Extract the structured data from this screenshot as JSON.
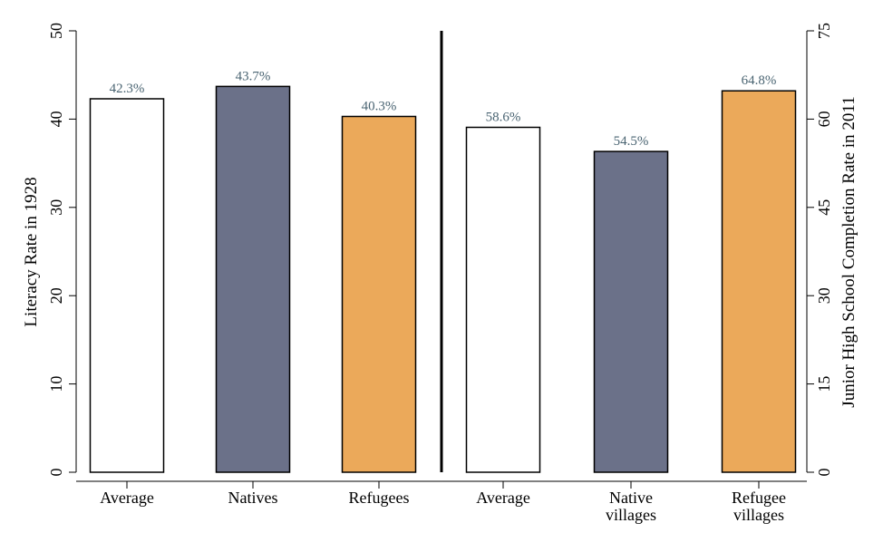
{
  "chart_data": {
    "type": "bar",
    "ylabel_left": "Literacy Rate in 1928",
    "ylabel_right": "Junior High School Completion Rate in 2011",
    "left_axis": {
      "ylim": [
        0,
        50
      ],
      "ticks": [
        "0",
        "10",
        "20",
        "30",
        "40",
        "50"
      ]
    },
    "right_axis": {
      "ylim": [
        0,
        75
      ],
      "ticks": [
        "0",
        "15",
        "30",
        "45",
        "60",
        "75"
      ]
    },
    "groups": [
      {
        "axis": "left",
        "bars": [
          {
            "category": [
              "Average"
            ],
            "value": 42.3,
            "label": "42.3%",
            "color": "#ffffff"
          },
          {
            "category": [
              "Natives"
            ],
            "value": 43.7,
            "label": "43.7%",
            "color": "#6b7189"
          },
          {
            "category": [
              "Refugees"
            ],
            "value": 40.3,
            "label": "40.3%",
            "color": "#eba95a"
          }
        ]
      },
      {
        "axis": "right",
        "bars": [
          {
            "category": [
              "Average"
            ],
            "value": 58.6,
            "label": "58.6%",
            "color": "#ffffff"
          },
          {
            "category": [
              "Native",
              "villages"
            ],
            "value": 54.5,
            "label": "54.5%",
            "color": "#6b7189"
          },
          {
            "category": [
              "Refugee",
              "villages"
            ],
            "value": 64.8,
            "label": "64.8%",
            "color": "#eba95a"
          }
        ]
      }
    ],
    "grid": false,
    "legend": "none",
    "label_color": "#4a6472"
  }
}
